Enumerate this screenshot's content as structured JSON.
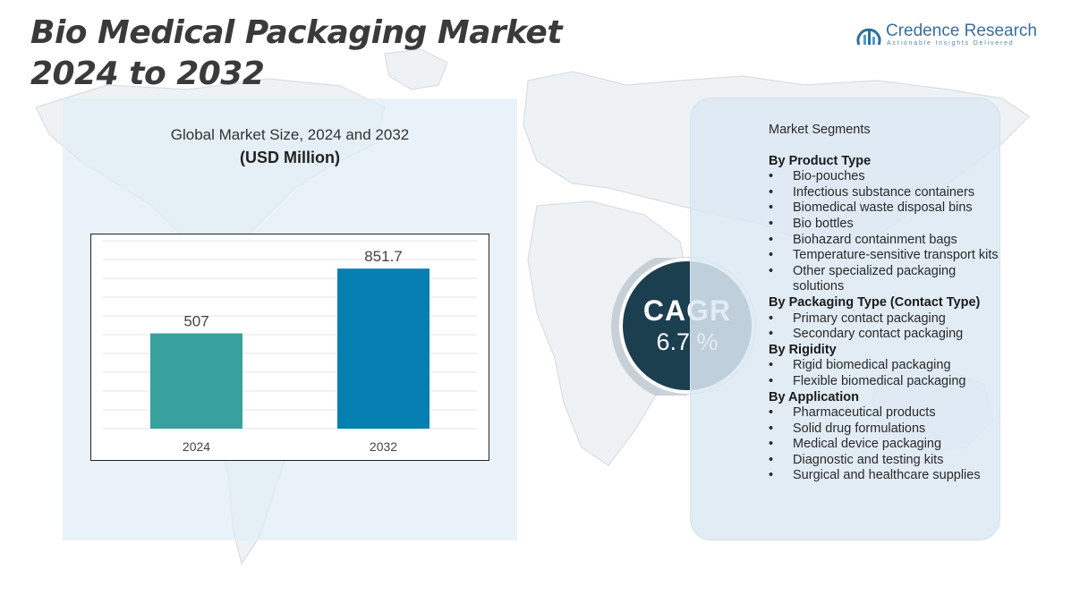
{
  "title": {
    "line1": "Bio Medical Packaging Market",
    "line2": "2024 to 2032"
  },
  "logo": {
    "name": "Credence Research",
    "tagline": "Actionable Insights Delivered"
  },
  "chart_data": {
    "type": "bar",
    "title": "Global Market Size, 2024 and 2032",
    "subtitle": "(USD Million)",
    "categories": [
      "2024",
      "2032"
    ],
    "values": [
      507,
      851.7
    ],
    "value_labels": [
      "507",
      "851.7"
    ],
    "colors": [
      "#36a19d",
      "#057fb1"
    ],
    "ylim": [
      0,
      1000
    ],
    "grid": true,
    "xlabel": "",
    "ylabel": ""
  },
  "cagr": {
    "label": "CAGR",
    "value": "6.7 %"
  },
  "segments": {
    "heading": "Market Segments",
    "groups": [
      {
        "title": "By Product Type",
        "items": [
          "Bio-pouches",
          "Infectious substance containers",
          "Biomedical waste disposal bins",
          "Bio bottles",
          "Biohazard containment bags",
          "Temperature-sensitive transport kits",
          "Other specialized packaging solutions"
        ]
      },
      {
        "title": "By Packaging Type (Contact Type)",
        "items": [
          "Primary contact packaging",
          "Secondary contact packaging"
        ]
      },
      {
        "title": "By Rigidity",
        "items": [
          "Rigid biomedical packaging",
          "Flexible biomedical packaging"
        ]
      },
      {
        "title": "By Application",
        "items": [
          "Pharmaceutical products",
          "Solid drug formulations",
          "Medical device packaging",
          "Diagnostic and testing kits",
          "Surgical and healthcare supplies"
        ]
      }
    ]
  }
}
